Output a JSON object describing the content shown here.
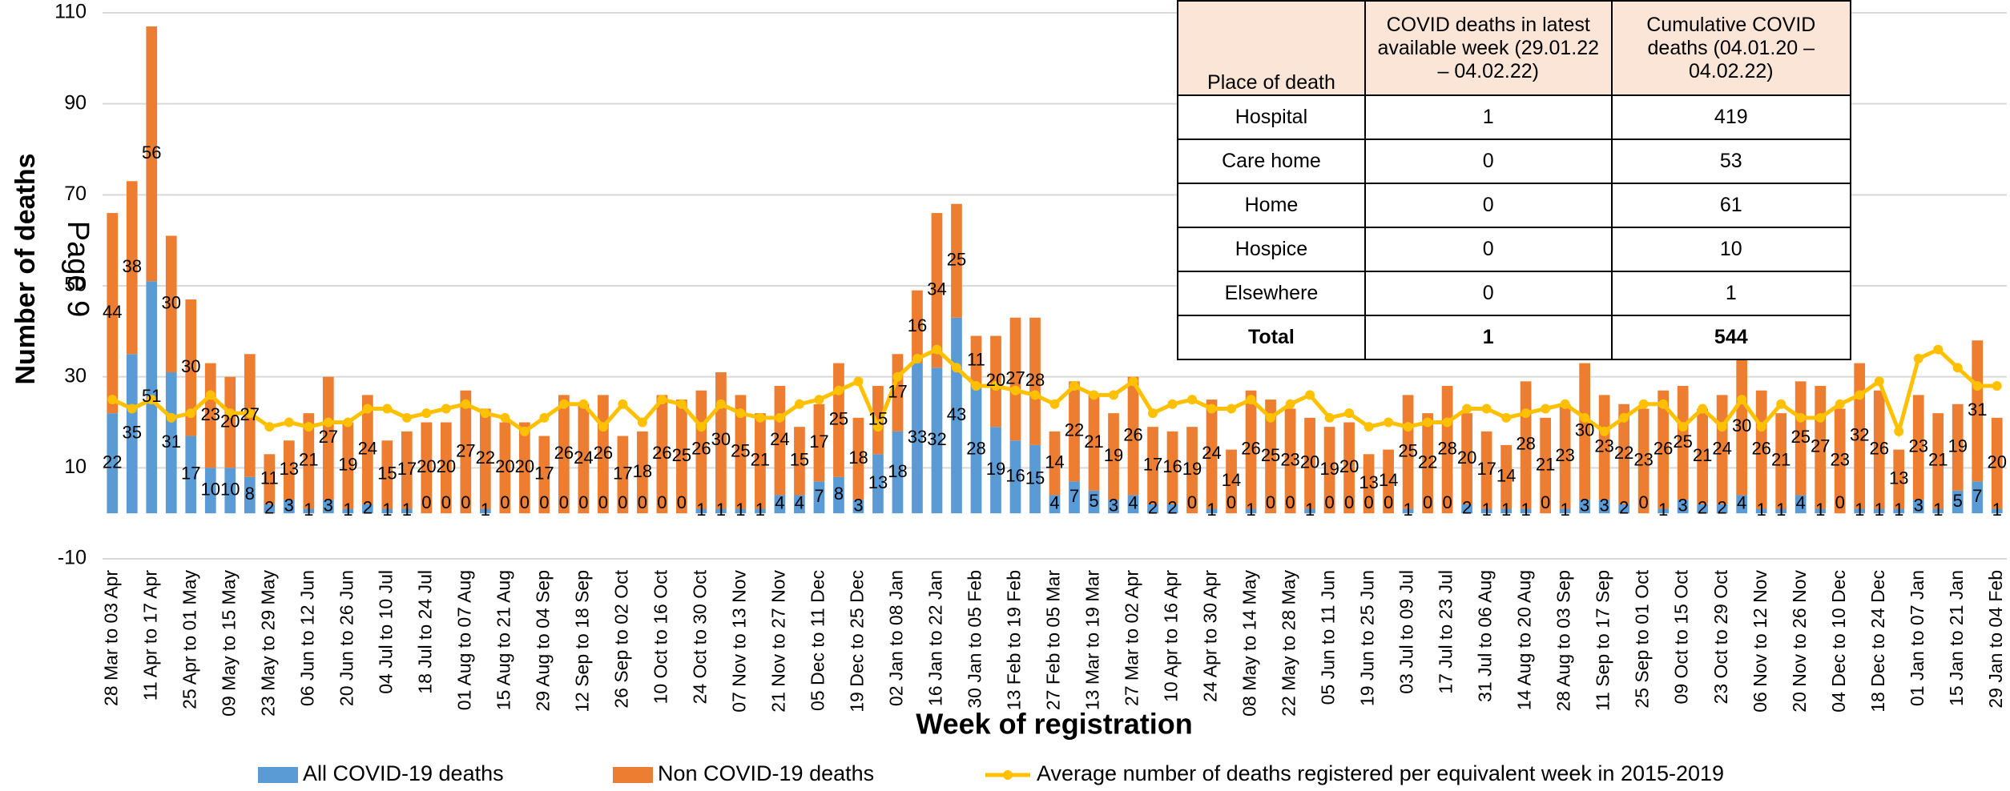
{
  "chart_data": {
    "type": "bar",
    "stacked": true,
    "y_label": "Number of deaths",
    "x_label": "Week of registration",
    "page_marker": "Page 9",
    "categories": [
      "28 Mar to 03 Apr",
      null,
      "11 Apr to 17 Apr",
      null,
      "25 Apr to 01 May",
      null,
      "09 May to 15 May",
      null,
      "23 May to 29 May",
      null,
      "06 Jun to 12 Jun",
      null,
      "20 Jun to 26 Jun",
      null,
      "04 Jul to 10 Jul",
      null,
      "18 Jul to 24 Jul",
      null,
      "01 Aug to 07 Aug",
      null,
      "15 Aug to 21 Aug",
      null,
      "29 Aug to 04 Sep",
      null,
      "12 Sep to 18 Sep",
      null,
      "26 Sep to 02 Oct",
      null,
      "10 Oct to 16 Oct",
      null,
      "24 Oct to 30 Oct",
      null,
      "07 Nov to 13 Nov",
      null,
      "21 Nov to 27 Nov",
      null,
      "05 Dec to 11 Dec",
      null,
      "19 Dec to 25 Dec",
      null,
      "02 Jan to 08 Jan",
      null,
      "16 Jan to 22 Jan",
      null,
      "30 Jan to 05 Feb",
      null,
      "13 Feb to 19 Feb",
      null,
      "27 Feb to 05 Mar",
      null,
      "13 Mar to 19 Mar",
      null,
      "27 Mar to 02 Apr",
      null,
      "10 Apr to 16 Apr",
      null,
      "24 Apr to 30 Apr",
      null,
      "08 May to 14 May",
      null,
      "22 May to 28 May",
      null,
      "05 Jun to 11 Jun",
      null,
      "19 Jun to 25 Jun",
      null,
      "03 Jul to 09 Jul",
      null,
      "17 Jul to 23 Jul",
      null,
      "31 Jul to 06 Aug",
      null,
      "14 Aug to 20 Aug",
      null,
      "28 Aug to 03 Sep",
      null,
      "11 Sep to 17 Sep",
      null,
      "25 Sep to 01 Oct",
      null,
      "09 Oct to 15 Oct",
      null,
      "23 Oct to 29 Oct",
      null,
      "06 Nov to 12 Nov",
      null,
      "20 Nov to 26 Nov",
      null,
      "04 Dec to 10 Dec",
      null,
      "18 Dec to 24 Dec",
      null,
      "01 Jan to 07 Jan",
      null,
      "15 Jan to 21 Jan",
      null,
      "29 Jan to 04 Feb"
    ],
    "series": [
      {
        "name": "All COVID-19 deaths",
        "color": "#5b9bd5",
        "values": [
          22,
          35,
          51,
          31,
          17,
          10,
          10,
          8,
          2,
          3,
          1,
          3,
          1,
          2,
          1,
          1,
          0,
          0,
          0,
          1,
          0,
          0,
          0,
          0,
          0,
          0,
          0,
          0,
          0,
          0,
          1,
          1,
          1,
          1,
          4,
          4,
          7,
          8,
          3,
          13,
          18,
          33,
          32,
          43,
          28,
          19,
          16,
          15,
          4,
          7,
          5,
          3,
          4,
          2,
          2,
          0,
          1,
          0,
          1,
          0,
          0,
          1,
          0,
          0,
          0,
          0,
          1,
          0,
          0,
          2,
          1,
          1,
          1,
          0,
          1,
          3,
          3,
          2,
          0,
          1,
          3,
          2,
          2,
          4,
          1,
          1,
          4,
          1,
          0,
          1,
          1,
          1,
          3,
          1,
          5,
          7,
          1
        ]
      },
      {
        "name": "Non COVID-19 deaths",
        "color": "#ed7d31",
        "values": [
          44,
          38,
          56,
          30,
          30,
          23,
          20,
          27,
          11,
          13,
          21,
          27,
          19,
          24,
          15,
          17,
          20,
          20,
          27,
          22,
          20,
          20,
          17,
          26,
          24,
          26,
          17,
          18,
          26,
          25,
          26,
          30,
          25,
          21,
          24,
          15,
          17,
          25,
          18,
          15,
          17,
          16,
          34,
          25,
          11,
          20,
          27,
          28,
          14,
          22,
          21,
          19,
          26,
          17,
          16,
          19,
          24,
          14,
          26,
          25,
          23,
          20,
          19,
          20,
          13,
          14,
          25,
          22,
          28,
          20,
          17,
          14,
          28,
          21,
          23,
          30,
          23,
          22,
          23,
          26,
          25,
          21,
          24,
          30,
          26,
          21,
          25,
          27,
          23,
          32,
          26,
          13,
          23,
          21,
          19,
          31,
          20
        ]
      },
      {
        "name": "Average number of deaths registered per equivalent week in 2015-2019",
        "color": "#ffc000",
        "type": "line",
        "values": [
          25,
          23,
          25,
          21,
          22,
          26,
          22,
          22,
          19,
          20,
          19,
          20,
          20,
          23,
          23,
          21,
          22,
          23,
          24,
          22,
          21,
          18,
          21,
          24,
          24,
          19,
          24,
          20,
          25,
          24,
          19,
          24,
          22,
          21,
          21,
          24,
          25,
          27,
          29,
          19,
          30,
          34,
          36,
          32,
          28,
          28,
          27,
          26,
          24,
          28,
          26,
          26,
          29,
          22,
          24,
          25,
          23,
          23,
          25,
          21,
          24,
          26,
          21,
          22,
          19,
          20,
          19,
          20,
          20,
          23,
          23,
          21,
          22,
          23,
          24,
          21,
          18,
          21,
          24,
          24,
          19,
          23,
          19,
          25,
          19,
          24,
          21,
          21,
          24,
          26,
          29,
          18,
          34,
          36,
          32,
          28,
          28
        ]
      }
    ],
    "ylim": [
      -10,
      110
    ],
    "yticks": [
      -10,
      10,
      30,
      50,
      70,
      90,
      110
    ],
    "grid": true,
    "legend": "bottom"
  },
  "table": {
    "header": [
      "Place of death",
      "COVID deaths in latest available week (29.01.22 – 04.02.22)",
      "Cumulative COVID deaths (04.01.20 – 04.02.22)"
    ],
    "rows": [
      [
        "Hospital",
        "1",
        "419"
      ],
      [
        "Care home",
        "0",
        "53"
      ],
      [
        "Home",
        "0",
        "61"
      ],
      [
        "Hospice",
        "0",
        "10"
      ],
      [
        "Elsewhere",
        "0",
        "1"
      ],
      [
        "Total",
        "1",
        "544"
      ]
    ]
  }
}
